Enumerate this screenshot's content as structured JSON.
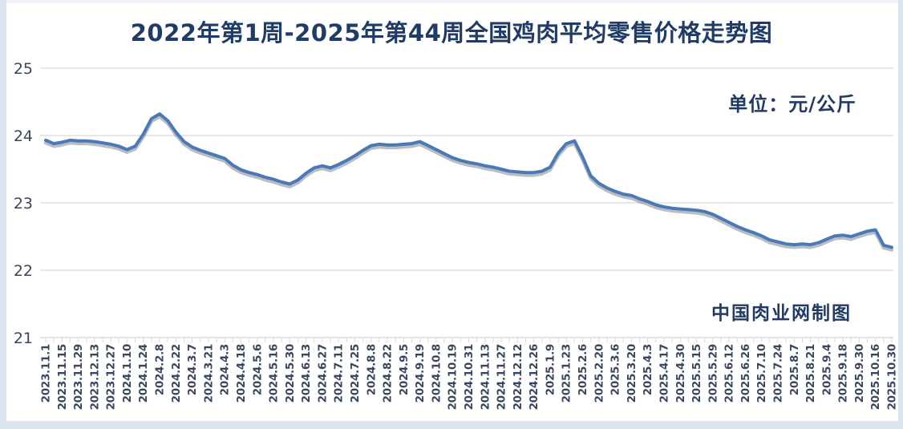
{
  "header": {
    "title": "2022年第1周-2025年第44周全国鸡肉平均零售价格走势图"
  },
  "annotations": {
    "unit_label": "单位：元/公斤",
    "credit": "中国肉业网制图"
  },
  "colors": {
    "title_text": "#1f3b66",
    "axis_text": "#39465e",
    "line": "#4a79b5",
    "line_shadow": "rgba(100,110,125,0.45)",
    "gridline": "#d9d9d9",
    "axis_line": "#cfd4da",
    "border": "#dbe5f2",
    "background": "#ffffff"
  },
  "chart_data": {
    "type": "line",
    "title": "2022年第1周-2025年第44周全国鸡肉平均零售价格走势图",
    "unit": "元/公斤",
    "series_name": "全国鸡肉平均零售价格",
    "ylim": [
      21,
      25
    ],
    "y_ticks": [
      21,
      22,
      23,
      24,
      25
    ],
    "grid": true,
    "x_label_step": 2,
    "x_tick_labels": [
      "2023.11.1",
      "2023.11.15",
      "2023.11.29",
      "2023.12.13",
      "2023.12.27",
      "2024.1.10",
      "2024.1.24",
      "2024.2.8",
      "2024.2.22",
      "2024.3.7",
      "2024.3.21",
      "2024.4.3",
      "2024.4.18",
      "2024.5.6",
      "2024.5.16",
      "2024.5.30",
      "2024.6.13",
      "2024.6.27",
      "2024.7.11",
      "2024.7.25",
      "2024.8.8",
      "2024.8.22",
      "2024.9.5",
      "2024.9.19",
      "2024.10.8",
      "2024.10.19",
      "2024.10.31",
      "2024.11.13",
      "2024.11.27",
      "2024.12.12",
      "2024.12.26",
      "2025.1.9",
      "2025.1.23",
      "2025.2.6",
      "2025.2.20",
      "2025.3.6",
      "2025.3.20",
      "2025.4.3",
      "2025.4.17",
      "2025.4.30",
      "2025.5.15",
      "2025.5.29",
      "2025.6.12",
      "2025.6.26",
      "2025.7.10",
      "2025.7.24",
      "2025.8.7",
      "2025.8.21",
      "2025.9.4",
      "2025.9.18",
      "2025.9.30",
      "2025.10.16",
      "2025.10.30"
    ],
    "values": [
      23.93,
      23.88,
      23.9,
      23.93,
      23.92,
      23.92,
      23.91,
      23.89,
      23.87,
      23.84,
      23.79,
      23.84,
      24.02,
      24.25,
      24.32,
      24.22,
      24.05,
      23.91,
      23.83,
      23.78,
      23.74,
      23.7,
      23.66,
      23.56,
      23.49,
      23.45,
      23.42,
      23.38,
      23.35,
      23.31,
      23.28,
      23.34,
      23.44,
      23.52,
      23.55,
      23.52,
      23.57,
      23.63,
      23.7,
      23.78,
      23.85,
      23.87,
      23.86,
      23.86,
      23.87,
      23.88,
      23.91,
      23.85,
      23.79,
      23.73,
      23.67,
      23.63,
      23.6,
      23.58,
      23.55,
      23.53,
      23.5,
      23.47,
      23.46,
      23.45,
      23.45,
      23.47,
      23.53,
      23.74,
      23.88,
      23.92,
      23.68,
      23.4,
      23.29,
      23.22,
      23.17,
      23.13,
      23.11,
      23.06,
      23.02,
      22.97,
      22.94,
      22.92,
      22.91,
      22.9,
      22.89,
      22.87,
      22.83,
      22.77,
      22.71,
      22.65,
      22.6,
      22.56,
      22.51,
      22.45,
      22.42,
      22.39,
      22.38,
      22.39,
      22.38,
      22.41,
      22.46,
      22.51,
      22.52,
      22.5,
      22.54,
      22.58,
      22.6,
      22.37,
      22.34
    ]
  }
}
